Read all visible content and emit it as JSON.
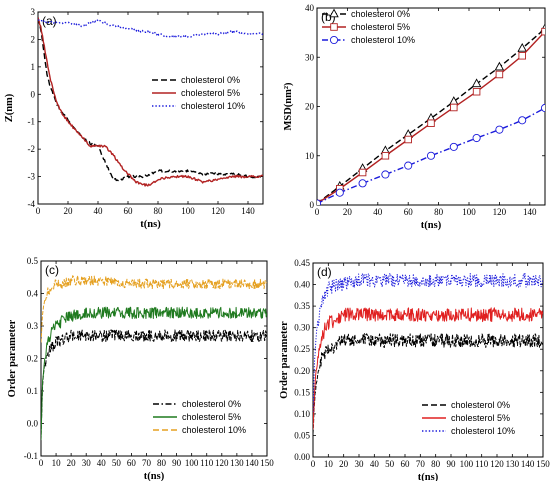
{
  "figure": {
    "colors": {
      "black": "#000000",
      "red": "#b22222",
      "blue": "#1a1adb",
      "green": "#1f7a1f",
      "orange": "#e5a020",
      "brightred": "#e02020"
    }
  },
  "chart_data": [
    {
      "id": "a",
      "panel_label": "(a)",
      "type": "line",
      "xlabel": "t(ns)",
      "ylabel": "Z(nm)",
      "xlim": [
        0,
        150
      ],
      "ylim": [
        -4,
        3
      ],
      "xticks": [
        0,
        20,
        40,
        60,
        80,
        100,
        120,
        140
      ],
      "yticks": [
        -4,
        -3,
        -2,
        -1,
        0,
        1,
        2,
        3
      ],
      "legend_position": "center-right",
      "series": [
        {
          "name": "cholesterol 0%",
          "style": "dash",
          "color": "#000000",
          "x": [
            0,
            2,
            4,
            6,
            8,
            10,
            12,
            15,
            20,
            25,
            30,
            35,
            40,
            45,
            50,
            55,
            60,
            70,
            80,
            90,
            100,
            110,
            120,
            130,
            140,
            150
          ],
          "y": [
            2.8,
            2.3,
            1.5,
            0.7,
            0.3,
            0.0,
            -0.3,
            -0.6,
            -0.9,
            -1.3,
            -1.6,
            -1.8,
            -1.9,
            -2.5,
            -3.1,
            -3.1,
            -3.0,
            -3.0,
            -2.8,
            -2.8,
            -2.8,
            -2.9,
            -2.9,
            -2.9,
            -3.0,
            -3.0
          ]
        },
        {
          "name": "cholesterol 5%",
          "style": "solid",
          "color": "#b22222",
          "x": [
            0,
            2,
            4,
            6,
            8,
            10,
            12,
            15,
            20,
            25,
            30,
            35,
            40,
            45,
            50,
            55,
            60,
            65,
            70,
            75,
            80,
            90,
            100,
            110,
            120,
            130,
            140,
            150
          ],
          "y": [
            2.8,
            2.4,
            1.8,
            1.2,
            0.6,
            0.2,
            -0.2,
            -0.6,
            -1.0,
            -1.3,
            -1.6,
            -1.9,
            -1.9,
            -1.9,
            -2.2,
            -2.6,
            -2.9,
            -3.2,
            -3.3,
            -3.3,
            -3.1,
            -3.0,
            -3.0,
            -3.2,
            -3.1,
            -3.0,
            -3.0,
            -3.0
          ]
        },
        {
          "name": "cholesterol 10%",
          "style": "dot",
          "color": "#1a1adb",
          "x": [
            0,
            10,
            20,
            30,
            40,
            50,
            60,
            70,
            80,
            90,
            100,
            110,
            120,
            130,
            140,
            150
          ],
          "y": [
            2.7,
            2.6,
            2.6,
            2.5,
            2.7,
            2.5,
            2.4,
            2.3,
            2.2,
            2.1,
            2.1,
            2.2,
            2.2,
            2.3,
            2.2,
            2.2
          ]
        }
      ]
    },
    {
      "id": "b",
      "panel_label": "(b)",
      "type": "line",
      "xlabel": "t(ns)",
      "ylabel": "MSD(nm²)",
      "xlim": [
        0,
        150
      ],
      "ylim": [
        0,
        40
      ],
      "xticks": [
        0,
        20,
        40,
        60,
        80,
        100,
        120,
        140
      ],
      "yticks": [
        0,
        10,
        20,
        30,
        40
      ],
      "legend_position": "top-left",
      "series": [
        {
          "name": "cholesterol 0%",
          "style": "dash",
          "color": "#000000",
          "marker": "triangle",
          "x": [
            0,
            15,
            30,
            45,
            60,
            75,
            90,
            105,
            120,
            135,
            150
          ],
          "y": [
            0.3,
            3.8,
            7.4,
            11.0,
            14.3,
            17.6,
            21.0,
            24.6,
            28.0,
            31.8,
            35.8
          ]
        },
        {
          "name": "cholesterol 5%",
          "style": "solid",
          "color": "#b22222",
          "marker": "square",
          "x": [
            0,
            15,
            30,
            45,
            60,
            75,
            90,
            105,
            120,
            135,
            150
          ],
          "y": [
            0.3,
            3.3,
            6.6,
            10.0,
            13.3,
            16.6,
            19.8,
            23.0,
            26.5,
            30.3,
            35.2
          ]
        },
        {
          "name": "cholesterol 10%",
          "style": "dashdot",
          "color": "#1a1adb",
          "marker": "circle",
          "x": [
            0,
            15,
            30,
            45,
            60,
            75,
            90,
            105,
            120,
            135,
            150
          ],
          "y": [
            0.3,
            2.5,
            4.4,
            6.2,
            8.0,
            10.0,
            11.8,
            13.6,
            15.3,
            17.2,
            19.7
          ]
        }
      ]
    },
    {
      "id": "c",
      "panel_label": "(c)",
      "type": "line",
      "xlabel": "t(ns)",
      "ylabel": "Order parameter",
      "xlim": [
        0,
        150
      ],
      "ylim": [
        -0.1,
        0.5
      ],
      "xticks": [
        0,
        10,
        20,
        30,
        40,
        50,
        60,
        70,
        80,
        90,
        100,
        110,
        120,
        130,
        140,
        150
      ],
      "yticks": [
        -0.1,
        0.0,
        0.1,
        0.2,
        0.3,
        0.4,
        0.5
      ],
      "ytick_labels": [
        "-0.1",
        "0.0",
        "0.1",
        "0.2",
        "0.3",
        "0.4",
        "0.5"
      ],
      "legend_position": "bottom-right",
      "series": [
        {
          "name": "cholesterol 0%",
          "style": "dashdot",
          "color": "#000000",
          "x": [
            0,
            1,
            2,
            4,
            6,
            8,
            10,
            15,
            20,
            30,
            40,
            60,
            80,
            100,
            120,
            150
          ],
          "y": [
            -0.05,
            0.12,
            0.17,
            0.21,
            0.23,
            0.24,
            0.25,
            0.26,
            0.27,
            0.27,
            0.27,
            0.27,
            0.27,
            0.27,
            0.27,
            0.27
          ],
          "fluctuation": 0.018
        },
        {
          "name": "cholesterol 5%",
          "style": "solid",
          "color": "#1f7a1f",
          "x": [
            0,
            1,
            2,
            4,
            6,
            8,
            10,
            15,
            20,
            30,
            40,
            60,
            80,
            100,
            120,
            150
          ],
          "y": [
            -0.05,
            0.13,
            0.18,
            0.24,
            0.27,
            0.29,
            0.3,
            0.32,
            0.33,
            0.34,
            0.34,
            0.34,
            0.34,
            0.34,
            0.34,
            0.34
          ],
          "fluctuation": 0.018
        },
        {
          "name": "cholesterol 10%",
          "style": "dash",
          "color": "#e5a020",
          "x": [
            0,
            1,
            2,
            4,
            6,
            8,
            10,
            15,
            20,
            30,
            40,
            60,
            80,
            100,
            120,
            150
          ],
          "y": [
            0.25,
            0.33,
            0.37,
            0.4,
            0.41,
            0.42,
            0.43,
            0.43,
            0.44,
            0.44,
            0.44,
            0.43,
            0.43,
            0.43,
            0.43,
            0.43
          ],
          "fluctuation": 0.015
        }
      ]
    },
    {
      "id": "d",
      "panel_label": "(d)",
      "type": "line",
      "xlabel": "t(ns)",
      "ylabel": "Order parameter",
      "xlim": [
        0,
        150
      ],
      "ylim": [
        0.0,
        0.45
      ],
      "xticks": [
        0,
        10,
        20,
        30,
        40,
        50,
        60,
        70,
        80,
        90,
        100,
        110,
        120,
        130,
        140,
        150
      ],
      "yticks": [
        0.0,
        0.05,
        0.1,
        0.15,
        0.2,
        0.25,
        0.3,
        0.35,
        0.4,
        0.45
      ],
      "ytick_labels": [
        "0.00",
        "0.05",
        "0.10",
        "0.15",
        "0.20",
        "0.25",
        "0.30",
        "0.35",
        "0.40",
        "0.45"
      ],
      "legend_position": "bottom-right",
      "series": [
        {
          "name": "cholesterol 0%",
          "style": "dash",
          "color": "#000000",
          "x": [
            0,
            1,
            2,
            4,
            6,
            8,
            10,
            15,
            20,
            30,
            40,
            60,
            80,
            100,
            120,
            150
          ],
          "y": [
            0.05,
            0.13,
            0.17,
            0.21,
            0.23,
            0.24,
            0.25,
            0.26,
            0.27,
            0.27,
            0.27,
            0.27,
            0.27,
            0.27,
            0.27,
            0.27
          ],
          "fluctuation": 0.016
        },
        {
          "name": "cholesterol 5%",
          "style": "solid",
          "color": "#e02020",
          "x": [
            0,
            1,
            2,
            4,
            6,
            8,
            10,
            15,
            20,
            30,
            40,
            60,
            80,
            100,
            120,
            150
          ],
          "y": [
            0.06,
            0.15,
            0.2,
            0.25,
            0.28,
            0.3,
            0.31,
            0.32,
            0.33,
            0.33,
            0.33,
            0.33,
            0.33,
            0.33,
            0.33,
            0.33
          ],
          "fluctuation": 0.016
        },
        {
          "name": "cholesterol 10%",
          "style": "dot",
          "color": "#1a1adb",
          "x": [
            0,
            1,
            2,
            4,
            6,
            8,
            10,
            15,
            20,
            30,
            40,
            60,
            80,
            100,
            120,
            150
          ],
          "y": [
            0.1,
            0.22,
            0.28,
            0.33,
            0.36,
            0.38,
            0.39,
            0.4,
            0.4,
            0.41,
            0.41,
            0.41,
            0.41,
            0.41,
            0.41,
            0.41
          ],
          "fluctuation": 0.016
        }
      ]
    }
  ]
}
